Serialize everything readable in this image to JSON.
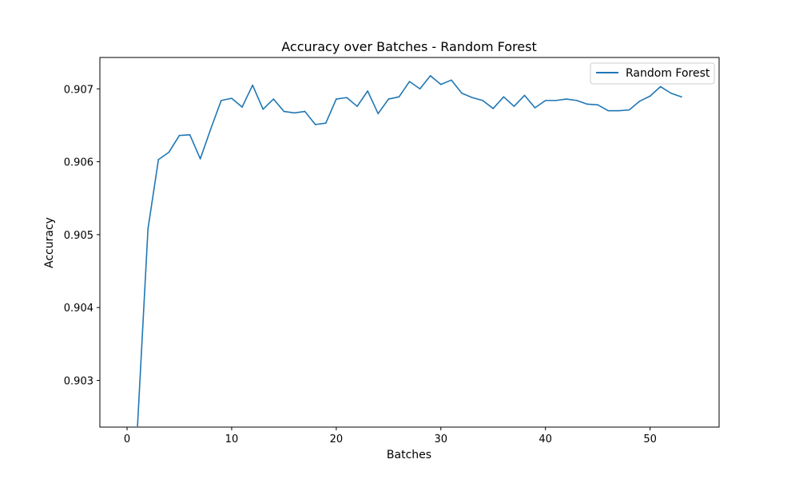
{
  "chart_data": {
    "type": "line",
    "title": "Accuracy over Batches - Random Forest",
    "xlabel": "Batches",
    "ylabel": "Accuracy",
    "xlim": [
      -2.6,
      56.6
    ],
    "ylim": [
      0.90236,
      0.90743
    ],
    "xticks": [
      0,
      10,
      20,
      30,
      40,
      50
    ],
    "xtick_labels": [
      "0",
      "10",
      "20",
      "30",
      "40",
      "50"
    ],
    "yticks": [
      0.903,
      0.904,
      0.905,
      0.906,
      0.907
    ],
    "ytick_labels": [
      "0.903",
      "0.904",
      "0.905",
      "0.906",
      "0.907"
    ],
    "grid": false,
    "legend_position": "top-right",
    "series": [
      {
        "name": "Random Forest",
        "color": "#1f77b4",
        "x": [
          1,
          2,
          3,
          4,
          5,
          6,
          7,
          8,
          9,
          10,
          11,
          12,
          13,
          14,
          15,
          16,
          17,
          18,
          19,
          20,
          21,
          22,
          23,
          24,
          25,
          26,
          27,
          28,
          29,
          30,
          31,
          32,
          33,
          34,
          35,
          36,
          37,
          38,
          39,
          40,
          41,
          42,
          43,
          44,
          45,
          46,
          47,
          48,
          49,
          50,
          51,
          52,
          53
        ],
        "y": [
          0.90238,
          0.90508,
          0.90603,
          0.90613,
          0.90636,
          0.90637,
          0.90604,
          0.90645,
          0.90684,
          0.90687,
          0.90675,
          0.90705,
          0.90672,
          0.90686,
          0.90669,
          0.90667,
          0.90669,
          0.90651,
          0.90653,
          0.90686,
          0.90688,
          0.90676,
          0.90697,
          0.90666,
          0.90686,
          0.90689,
          0.9071,
          0.907,
          0.90718,
          0.90706,
          0.90712,
          0.90694,
          0.90688,
          0.90684,
          0.90673,
          0.90689,
          0.90676,
          0.90691,
          0.90674,
          0.90684,
          0.90684,
          0.90686,
          0.90684,
          0.90679,
          0.90678,
          0.9067,
          0.9067,
          0.90671,
          0.90683,
          0.9069,
          0.90703,
          0.90694,
          0.90689
        ]
      }
    ]
  }
}
